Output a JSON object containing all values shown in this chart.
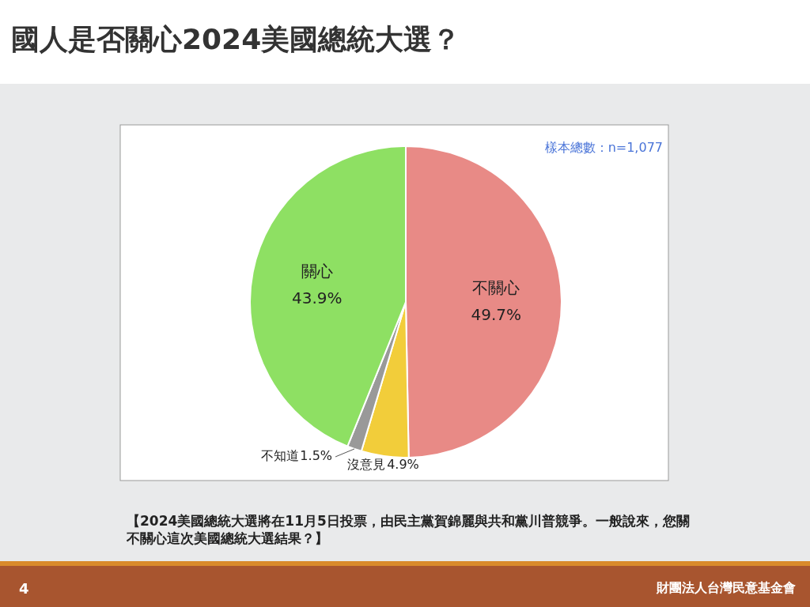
{
  "chart_data": {
    "type": "pie",
    "title": "國人是否關心2024美國總統大選？",
    "categories": [
      "不關心",
      "沒意見",
      "不知道",
      "關心"
    ],
    "values": [
      49.7,
      4.9,
      1.5,
      43.9
    ],
    "colors": [
      "#e88a86",
      "#f2cd3a",
      "#999999",
      "#8ee063"
    ],
    "value_labels": [
      "49.7%",
      "4.9%",
      "1.5%",
      "43.9%"
    ],
    "annotations": [
      "樣本總數：n=1,077",
      "【2024美國總統大選將在11月5日投票，由民主黨賀錦麗與共和黨川普競爭。一般說來，您關不關心這次美國總統大選結果？】",
      "4",
      "財團法人台灣民意基金會"
    ]
  }
}
